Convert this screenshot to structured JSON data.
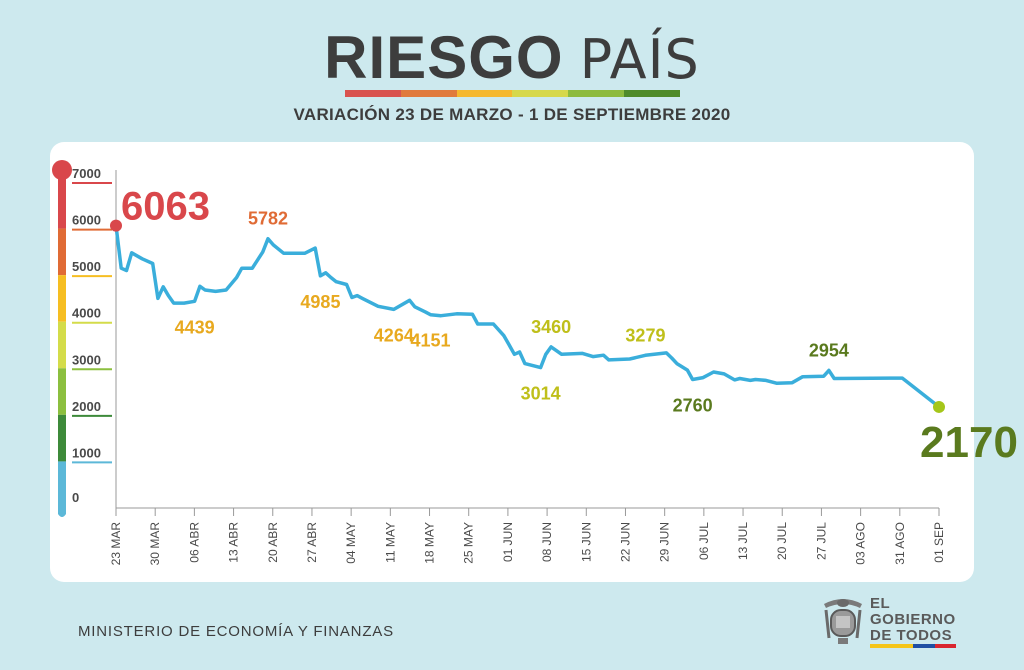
{
  "title": {
    "bold": "RIESGO",
    "light": "PAÍS"
  },
  "subtitle": "VARIACIÓN 23 DE MARZO - 1 DE SEPTIEMBRE 2020",
  "title_bar_colors": [
    "#d9534f",
    "#e07a3c",
    "#f5b82e",
    "#d6d84b",
    "#8dbb3e",
    "#4f8b2a"
  ],
  "footer": "MINISTERIO DE ECONOMÍA Y FINANZAS",
  "logo": {
    "line1": "EL",
    "line2": "GOBIERNO",
    "line3": "DE TODOS"
  },
  "chart_data": {
    "type": "line",
    "title": "RIESGO PAÍS",
    "subtitle": "VARIACIÓN 23 DE MARZO - 1 DE SEPTIEMBRE 2020",
    "ylim": [
      0,
      7000
    ],
    "yticks": [
      0,
      1000,
      2000,
      3000,
      4000,
      5000,
      6000,
      7000
    ],
    "line_color": "#3aaedb",
    "scale_colors": [
      {
        "from": 6000,
        "to": 7000,
        "color": "#d9474b"
      },
      {
        "from": 5000,
        "to": 6000,
        "color": "#e06b35"
      },
      {
        "from": 4000,
        "to": 5000,
        "color": "#f6be22"
      },
      {
        "from": 3000,
        "to": 4000,
        "color": "#d4dc4a"
      },
      {
        "from": 2000,
        "to": 3000,
        "color": "#8cbf3f"
      },
      {
        "from": 1000,
        "to": 2000,
        "color": "#3d8a3a"
      },
      {
        "from": 0,
        "to": 1000,
        "color": "#5cb8d8"
      }
    ],
    "x_ticks": [
      "23 MAR",
      "30 MAR",
      "06 ABR",
      "13 ABR",
      "20 ABR",
      "27 ABR",
      "04 MAY",
      "11 MAY",
      "18 MAY",
      "25 MAY",
      "01 JUN",
      "08 JUN",
      "15 JUN",
      "22 JUN",
      "29 JUN",
      "06 JUL",
      "13 JUL",
      "20 JUL",
      "27 JUL",
      "03 AGO",
      "31 AGO",
      "01 SEP"
    ],
    "series": [
      {
        "points": [
          [
            0,
            6063
          ],
          [
            1,
            5150
          ],
          [
            2,
            5100
          ],
          [
            3,
            5480
          ],
          [
            5,
            5350
          ],
          [
            7,
            5250
          ],
          [
            8,
            4500
          ],
          [
            9,
            4750
          ],
          [
            10,
            4560
          ],
          [
            11,
            4400
          ],
          [
            13,
            4400
          ],
          [
            15,
            4439
          ],
          [
            16,
            4760
          ],
          [
            17,
            4680
          ],
          [
            19,
            4650
          ],
          [
            21,
            4680
          ],
          [
            23,
            4950
          ],
          [
            24,
            5150
          ],
          [
            26,
            5150
          ],
          [
            28,
            5500
          ],
          [
            29,
            5782
          ],
          [
            30,
            5650
          ],
          [
            32,
            5470
          ],
          [
            36,
            5470
          ],
          [
            38,
            5580
          ],
          [
            39,
            4985
          ],
          [
            40,
            5050
          ],
          [
            41,
            4950
          ],
          [
            42,
            4860
          ],
          [
            44,
            4800
          ],
          [
            45,
            4520
          ],
          [
            46,
            4560
          ],
          [
            47,
            4500
          ],
          [
            50,
            4330
          ],
          [
            53,
            4264
          ],
          [
            56,
            4460
          ],
          [
            57,
            4320
          ],
          [
            59,
            4210
          ],
          [
            60,
            4151
          ],
          [
            62,
            4130
          ],
          [
            65,
            4170
          ],
          [
            68,
            4160
          ],
          [
            69,
            3950
          ],
          [
            72,
            3950
          ],
          [
            74,
            3700
          ],
          [
            75,
            3500
          ],
          [
            76,
            3300
          ],
          [
            77,
            3350
          ],
          [
            78,
            3100
          ],
          [
            81,
            3014
          ],
          [
            82,
            3300
          ],
          [
            83,
            3460
          ],
          [
            84,
            3380
          ],
          [
            85,
            3300
          ],
          [
            89,
            3320
          ],
          [
            91,
            3250
          ],
          [
            93,
            3280
          ],
          [
            94,
            3180
          ],
          [
            98,
            3200
          ],
          [
            101,
            3279
          ],
          [
            105,
            3330
          ],
          [
            106,
            3220
          ],
          [
            107,
            3100
          ],
          [
            109,
            2960
          ],
          [
            110,
            2760
          ],
          [
            112,
            2800
          ],
          [
            114,
            2920
          ],
          [
            116,
            2880
          ],
          [
            118,
            2750
          ],
          [
            119,
            2780
          ],
          [
            121,
            2740
          ],
          [
            122,
            2760
          ],
          [
            124,
            2740
          ],
          [
            126,
            2680
          ],
          [
            129,
            2690
          ],
          [
            131,
            2820
          ],
          [
            135,
            2830
          ],
          [
            136,
            2954
          ],
          [
            137,
            2780
          ],
          [
            150,
            2790
          ],
          [
            157,
            2170
          ]
        ]
      }
    ],
    "annotations": [
      {
        "label": "6063",
        "x": 0,
        "y": 6063,
        "color": "#d9474b",
        "style": "big"
      },
      {
        "label": "4439",
        "x": 15,
        "y": 4439,
        "color": "#e8a91f",
        "style": "below"
      },
      {
        "label": "5782",
        "x": 29,
        "y": 5782,
        "color": "#e06b35",
        "style": "above"
      },
      {
        "label": "4985",
        "x": 39,
        "y": 4985,
        "color": "#e8a91f",
        "style": "below"
      },
      {
        "label": "4264",
        "x": 53,
        "y": 4264,
        "color": "#e8a91f",
        "style": "below"
      },
      {
        "label": "4151",
        "x": 60,
        "y": 4151,
        "color": "#e8a91f",
        "style": "below"
      },
      {
        "label": "3460",
        "x": 83,
        "y": 3460,
        "color": "#bfbf1a",
        "style": "above"
      },
      {
        "label": "3014",
        "x": 81,
        "y": 3014,
        "color": "#bfbf1a",
        "style": "below"
      },
      {
        "label": "3279",
        "x": 101,
        "y": 3279,
        "color": "#bfbf1a",
        "style": "above"
      },
      {
        "label": "2760",
        "x": 110,
        "y": 2760,
        "color": "#5a7a1e",
        "style": "below"
      },
      {
        "label": "2954",
        "x": 136,
        "y": 2954,
        "color": "#5a7a1e",
        "style": "above"
      },
      {
        "label": "2170",
        "x": 157,
        "y": 2170,
        "color": "#5a7a1e",
        "style": "big-end"
      }
    ]
  }
}
